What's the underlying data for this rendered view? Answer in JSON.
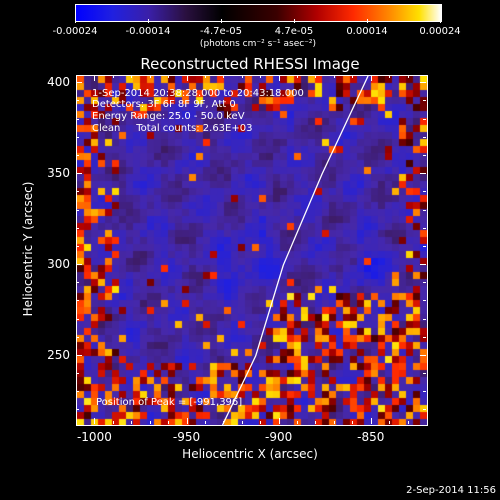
{
  "colorbar": {
    "ticks": [
      "-0.00024",
      "-0.00014",
      "-4.7e-05",
      "4.7e-05",
      "0.00014",
      "0.00024"
    ],
    "units": "(photons cm⁻² s⁻¹ asec⁻²)"
  },
  "chart": {
    "title": "Reconstructed RHESSI Image",
    "xlabel": "Heliocentric X (arcsec)",
    "ylabel": "Heliocentric Y (arcsec)",
    "xticks": [
      "-1000",
      "-950",
      "-900",
      "-850"
    ],
    "yticks": [
      "250",
      "300",
      "350",
      "400"
    ]
  },
  "info": {
    "time": "1-Sep-2014 20:38:28.000 to 20:43:18.000",
    "detectors": "Detectors: 3F 6F 8F 9F, Att 0",
    "energy": "Energy Range: 25.0 - 50.0 keV",
    "clean": "Clean     Total counts: 2.63E+03",
    "peak": "Position of Peak = [-991,396]"
  },
  "footer": "2-Sep-2014 11:56",
  "chart_data": {
    "type": "heatmap",
    "title": "Reconstructed RHESSI Image",
    "xlabel": "Heliocentric X (arcsec)",
    "ylabel": "Heliocentric Y (arcsec)",
    "xlim": [
      -1010,
      -820
    ],
    "ylim": [
      212,
      404
    ],
    "color_range": [
      -0.00024,
      0.00024
    ],
    "limb_curve": [
      [
        -931,
        212
      ],
      [
        -913,
        250
      ],
      [
        -898,
        300
      ],
      [
        -877,
        350
      ],
      [
        -852,
        404
      ]
    ],
    "peak_position": [
      -991,
      396
    ]
  }
}
